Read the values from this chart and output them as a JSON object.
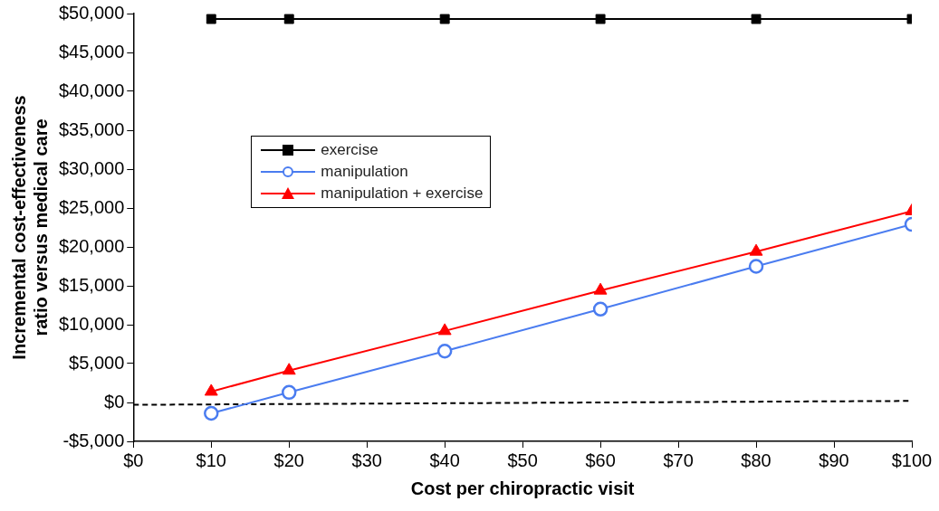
{
  "chart_data": {
    "type": "line",
    "xlabel": "Cost per chiropractic visit",
    "ylabel": "Incremental cost-effectiveness ratio versus medical care",
    "x": [
      10,
      20,
      40,
      60,
      80,
      100
    ],
    "series": [
      {
        "name": "exercise",
        "color": "#000000",
        "marker": "square",
        "values": [
          49300,
          49300,
          49300,
          49300,
          49300,
          49300
        ]
      },
      {
        "name": "manipulation",
        "color": "#4a7cf0",
        "marker": "circle",
        "values": [
          -1400,
          1300,
          6600,
          12000,
          17500,
          22900
        ]
      },
      {
        "name": "manipulation + exercise",
        "color": "#ff0000",
        "marker": "triangle",
        "values": [
          1400,
          4100,
          9200,
          14400,
          19400,
          24600
        ]
      },
      {
        "color": "#000000",
        "marker": "none",
        "line_style": "dashed",
        "x": [
          0,
          100
        ],
        "values": [
          -300,
          200
        ]
      }
    ],
    "xlim": [
      0,
      100
    ],
    "xticks": [
      {
        "value": 0,
        "label": "$0"
      },
      {
        "value": 10,
        "label": "$10"
      },
      {
        "value": 20,
        "label": "$20"
      },
      {
        "value": 30,
        "label": "$30"
      },
      {
        "value": 40,
        "label": "$40"
      },
      {
        "value": 50,
        "label": "$50"
      },
      {
        "value": 60,
        "label": "$60"
      },
      {
        "value": 70,
        "label": "$70"
      },
      {
        "value": 80,
        "label": "$80"
      },
      {
        "value": 90,
        "label": "$90"
      },
      {
        "value": 100,
        "label": "$100"
      }
    ],
    "ylim": [
      -5000,
      50000
    ],
    "yticks": [
      {
        "value": -5000,
        "label": "-$5,000"
      },
      {
        "value": 0,
        "label": "$0"
      },
      {
        "value": 5000,
        "label": "$5,000"
      },
      {
        "value": 10000,
        "label": "$10,000"
      },
      {
        "value": 15000,
        "label": "$15,000"
      },
      {
        "value": 20000,
        "label": "$20,000"
      },
      {
        "value": 25000,
        "label": "$25,000"
      },
      {
        "value": 30000,
        "label": "$30,000"
      },
      {
        "value": 35000,
        "label": "$35,000"
      },
      {
        "value": 40000,
        "label": "$40,000"
      },
      {
        "value": 45000,
        "label": "$45,000"
      },
      {
        "value": 50000,
        "label": "$50,000"
      }
    ],
    "grid": false,
    "legend": "top left"
  }
}
